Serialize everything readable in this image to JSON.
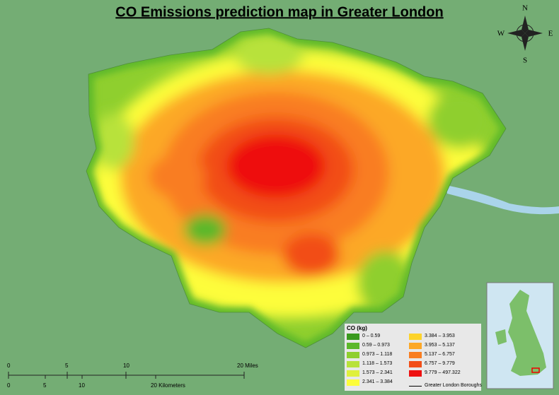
{
  "title": "CO Emissions prediction map in Greater London",
  "compass": {
    "n": "N",
    "s": "S",
    "e": "E",
    "w": "W"
  },
  "legend": {
    "title": "CO (kg)",
    "items": [
      {
        "label": "0 – 0.59",
        "color": "#3a9a1e"
      },
      {
        "label": "0.59 – 0.973",
        "color": "#5cb82a"
      },
      {
        "label": "0.973 – 1.118",
        "color": "#8fcf2e"
      },
      {
        "label": "1.118 – 1.573",
        "color": "#b8e23a"
      },
      {
        "label": "1.573 – 2.341",
        "color": "#dff03c"
      },
      {
        "label": "2.341 – 3.384",
        "color": "#fdfd3a"
      },
      {
        "label": "3.384 – 3.953",
        "color": "#fdd32a"
      },
      {
        "label": "3.953 – 5.137",
        "color": "#fca826"
      },
      {
        "label": "5.137 – 6.757",
        "color": "#f97d20"
      },
      {
        "label": "6.757 – 9.779",
        "color": "#f24e17"
      },
      {
        "label": "9.779 – 497.322",
        "color": "#ee1111"
      }
    ],
    "boundary": "Greater London Boroughs"
  },
  "scale": {
    "miles": [
      "0",
      "5",
      "10",
      "20 Miles"
    ],
    "km": [
      "0",
      "5",
      "10",
      "20 Kilometers"
    ]
  }
}
